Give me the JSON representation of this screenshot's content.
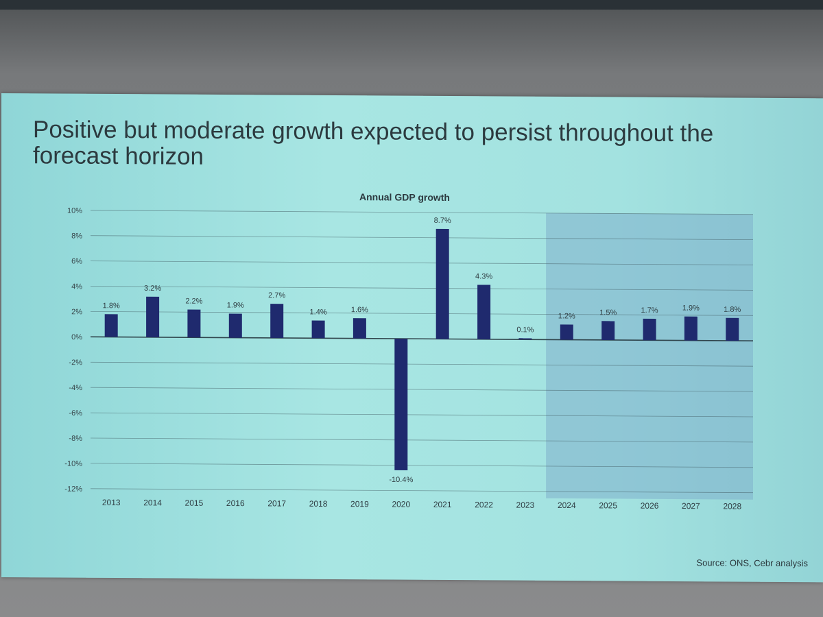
{
  "slide": {
    "title": "Positive but moderate growth expected to persist throughout the forecast horizon",
    "source": "Source: ONS, Cebr analysis"
  },
  "colors": {
    "bar": "#1f2a6e",
    "forecast_shade": "#7fb0cc",
    "gridline": "#3f5a60",
    "zero_line": "#2a3d44"
  },
  "chart_data": {
    "type": "bar",
    "title": "Annual GDP growth",
    "xlabel": "",
    "ylabel": "",
    "ylim": [
      -12,
      10
    ],
    "yticks": [
      10,
      8,
      6,
      4,
      2,
      0,
      -2,
      -4,
      -6,
      -8,
      -10,
      -12
    ],
    "ytick_labels": [
      "10%",
      "8%",
      "6%",
      "4%",
      "2%",
      "0%",
      "-2%",
      "-4%",
      "-6%",
      "-8%",
      "-10%",
      "-12%"
    ],
    "grid": true,
    "categories": [
      "2013",
      "2014",
      "2015",
      "2016",
      "2017",
      "2018",
      "2019",
      "2020",
      "2021",
      "2022",
      "2023",
      "2024",
      "2025",
      "2026",
      "2027",
      "2028"
    ],
    "values": [
      1.8,
      3.2,
      2.2,
      1.9,
      2.7,
      1.4,
      1.6,
      -10.4,
      8.7,
      4.3,
      0.1,
      1.2,
      1.5,
      1.7,
      1.9,
      1.8
    ],
    "data_labels": [
      "1.8%",
      "3.2%",
      "2.2%",
      "1.9%",
      "2.7%",
      "1.4%",
      "1.6%",
      "-10.4%",
      "8.7%",
      "4.3%",
      "0.1%",
      "1.2%",
      "1.5%",
      "1.7%",
      "1.9%",
      "1.8%"
    ],
    "shaded_region": {
      "from": "2024",
      "to": "2028",
      "meaning": "forecast"
    }
  }
}
